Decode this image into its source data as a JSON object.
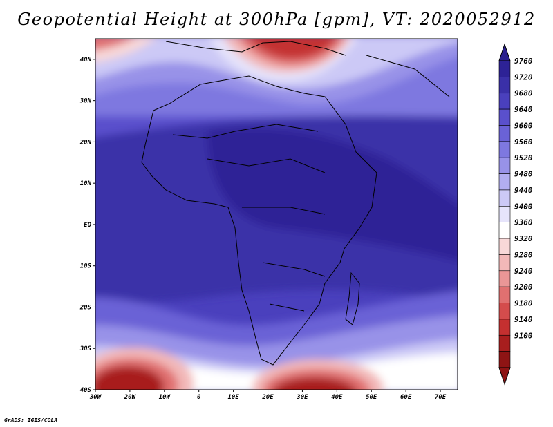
{
  "title": "Geopotential Height at 300hPa [gpm], VT: 2020052912",
  "credit": "GrADS: IGES/COLA",
  "map": {
    "lon_range": [
      -30,
      75
    ],
    "lat_range": [
      -40,
      45
    ],
    "lon_ticks": [
      {
        "value": -30,
        "label": "30W"
      },
      {
        "value": -20,
        "label": "20W"
      },
      {
        "value": -10,
        "label": "10W"
      },
      {
        "value": 0,
        "label": "0"
      },
      {
        "value": 10,
        "label": "10E"
      },
      {
        "value": 20,
        "label": "20E"
      },
      {
        "value": 30,
        "label": "30E"
      },
      {
        "value": 40,
        "label": "40E"
      },
      {
        "value": 50,
        "label": "50E"
      },
      {
        "value": 60,
        "label": "60E"
      },
      {
        "value": 70,
        "label": "70E"
      }
    ],
    "lat_ticks": [
      {
        "value": 40,
        "label": "40N"
      },
      {
        "value": 30,
        "label": "30N"
      },
      {
        "value": 20,
        "label": "20N"
      },
      {
        "value": 10,
        "label": "10N"
      },
      {
        "value": 0,
        "label": "EQ"
      },
      {
        "value": -10,
        "label": "10S"
      },
      {
        "value": -20,
        "label": "20S"
      },
      {
        "value": -30,
        "label": "30S"
      },
      {
        "value": -40,
        "label": "40S"
      }
    ]
  },
  "colorbar": {
    "labels": [
      "9760",
      "9720",
      "9680",
      "9640",
      "9600",
      "9560",
      "9520",
      "9480",
      "9440",
      "9400",
      "9360",
      "9320",
      "9280",
      "9240",
      "9200",
      "9180",
      "9140",
      "9100"
    ],
    "colors_top_to_bottom": [
      "#2d2296",
      "#3a30a8",
      "#4a40bd",
      "#5a50cc",
      "#6a62d6",
      "#7e78e0",
      "#9892e8",
      "#b2aef0",
      "#ccc9f6",
      "#e6e4fb",
      "#ffffff",
      "#f8d8d8",
      "#f2b8b8",
      "#ea9696",
      "#e07070",
      "#d44c4c",
      "#c43030",
      "#a81e1e",
      "#8e1414"
    ],
    "top_arrow_color": "#2a1f8e",
    "bottom_arrow_color": "#8e1414"
  }
}
